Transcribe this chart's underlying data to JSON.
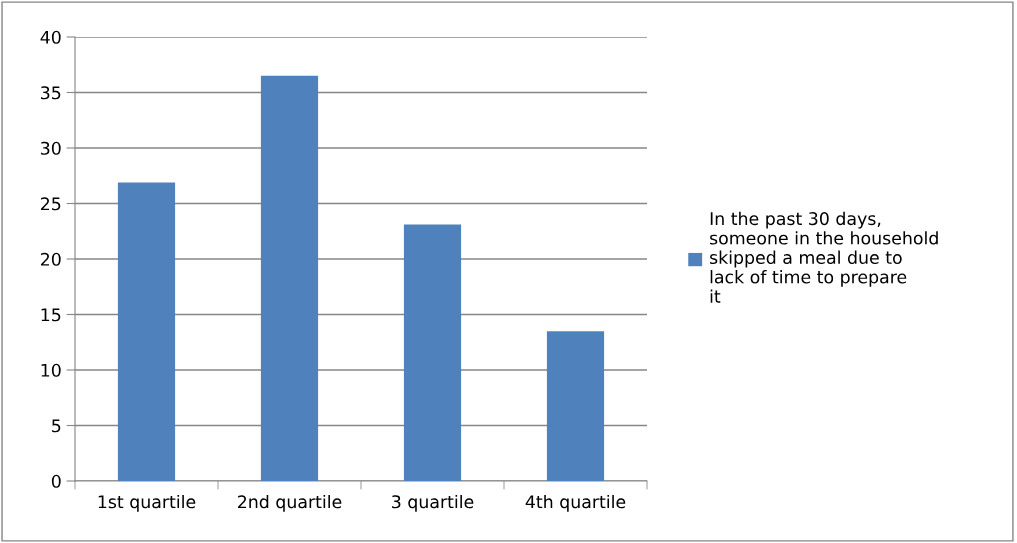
{
  "chart_data": {
    "type": "bar",
    "categories": [
      "1st quartile",
      "2nd quartile",
      "3 quartile",
      "4th quartile"
    ],
    "series": [
      {
        "name": "In the past 30 days, someone in the household skipped a meal due to lack of time to prepare it",
        "color": "#4f81bd",
        "values": [
          26.9,
          36.5,
          23.1,
          13.5
        ]
      }
    ],
    "ylim": [
      0,
      40
    ],
    "yticks": [
      0,
      5,
      10,
      15,
      20,
      25,
      30,
      35,
      40
    ],
    "grid": "y",
    "legend": "right"
  }
}
